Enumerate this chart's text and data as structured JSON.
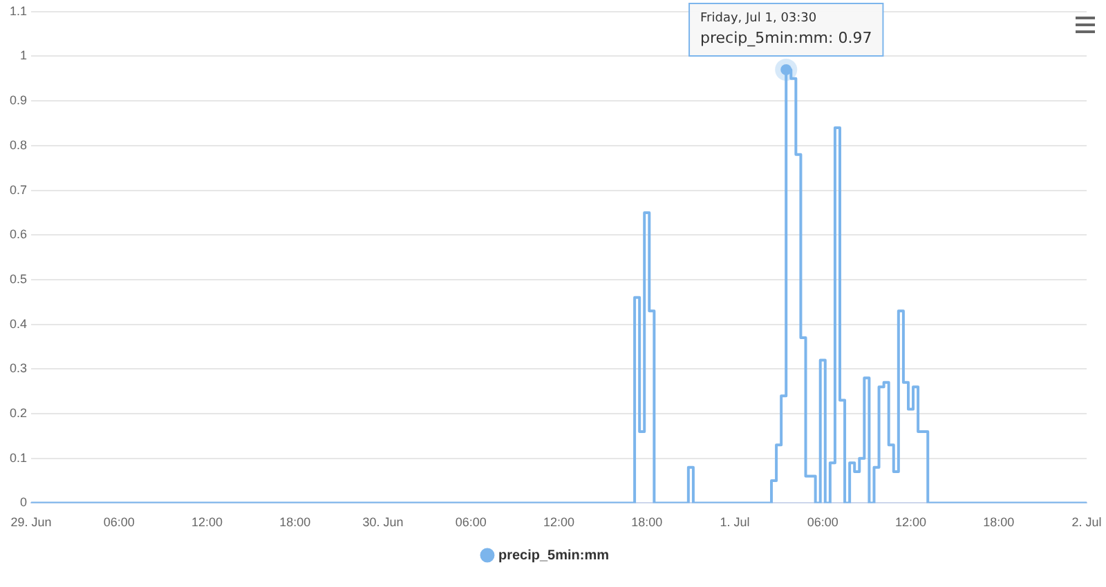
{
  "chart_data": {
    "type": "step",
    "x": [
      "--06-29T00:00",
      "--06-30T17:10",
      "--06-30T17:30",
      "--06-30T17:50",
      "--06-30T18:10",
      "--06-30T18:30",
      "--06-30T20:50",
      "--06-30T21:10",
      "--07-01T02:30",
      "--07-01T02:50",
      "--07-01T03:10",
      "--07-01T03:30",
      "--07-01T03:50",
      "--07-01T04:10",
      "--07-01T04:30",
      "--07-01T04:50",
      "--07-01T05:30",
      "--07-01T05:50",
      "--07-01T06:10",
      "--07-01T06:30",
      "--07-01T06:50",
      "--07-01T07:10",
      "--07-01T07:30",
      "--07-01T07:50",
      "--07-01T08:10",
      "--07-01T08:30",
      "--07-01T08:50",
      "--07-01T09:10",
      "--07-01T09:30",
      "--07-01T09:50",
      "--07-01T10:10",
      "--07-01T10:30",
      "--07-01T10:50",
      "--07-01T11:10",
      "--07-01T11:30",
      "--07-01T11:50",
      "--07-01T12:10",
      "--07-01T12:30",
      "--07-01T13:10",
      "--07-02T00:00"
    ],
    "series": [
      {
        "name": "precip_5min:mm",
        "color": "#7cb5ec",
        "values": [
          0,
          0.46,
          0.16,
          0.65,
          0.43,
          0,
          0.08,
          0,
          0.05,
          0.13,
          0.24,
          0.97,
          0.95,
          0.78,
          0.37,
          0.06,
          0,
          0.32,
          0,
          0.09,
          0.84,
          0.23,
          0,
          0.09,
          0.07,
          0.1,
          0.28,
          0,
          0.08,
          0.26,
          0.27,
          0.13,
          0.07,
          0.43,
          0.27,
          0.21,
          0.26,
          0.16,
          0,
          0
        ]
      }
    ],
    "xlim": [
      "--06-29T00:00",
      "--07-02T00:00"
    ],
    "xticks": [
      {
        "value": "--06-29T00:00",
        "label": "29. Jun"
      },
      {
        "value": "--06-29T06:00",
        "label": "06:00"
      },
      {
        "value": "--06-29T12:00",
        "label": "12:00"
      },
      {
        "value": "--06-29T18:00",
        "label": "18:00"
      },
      {
        "value": "--06-30T00:00",
        "label": "30. Jun"
      },
      {
        "value": "--06-30T06:00",
        "label": "06:00"
      },
      {
        "value": "--06-30T12:00",
        "label": "12:00"
      },
      {
        "value": "--06-30T18:00",
        "label": "18:00"
      },
      {
        "value": "--07-01T00:00",
        "label": "1. Jul"
      },
      {
        "value": "--07-01T06:00",
        "label": "06:00"
      },
      {
        "value": "--07-01T12:00",
        "label": "12:00"
      },
      {
        "value": "--07-01T18:00",
        "label": "18:00"
      },
      {
        "value": "--07-02T00:00",
        "label": "2. Jul"
      }
    ],
    "ylim": [
      0,
      1.1
    ],
    "yticks": [
      0,
      0.1,
      0.2,
      0.3,
      0.4,
      0.5,
      0.6,
      0.7,
      0.8,
      0.9,
      1,
      1.1
    ],
    "grid": "y",
    "legend": "bottom",
    "marker": "none",
    "line_style": "solid",
    "annotations": [
      {
        "text": "Friday, Jul 1, 03:30\nprecip_5min:mm: 0.97",
        "x": "--07-01T03:30",
        "y": 0.97
      }
    ]
  }
}
